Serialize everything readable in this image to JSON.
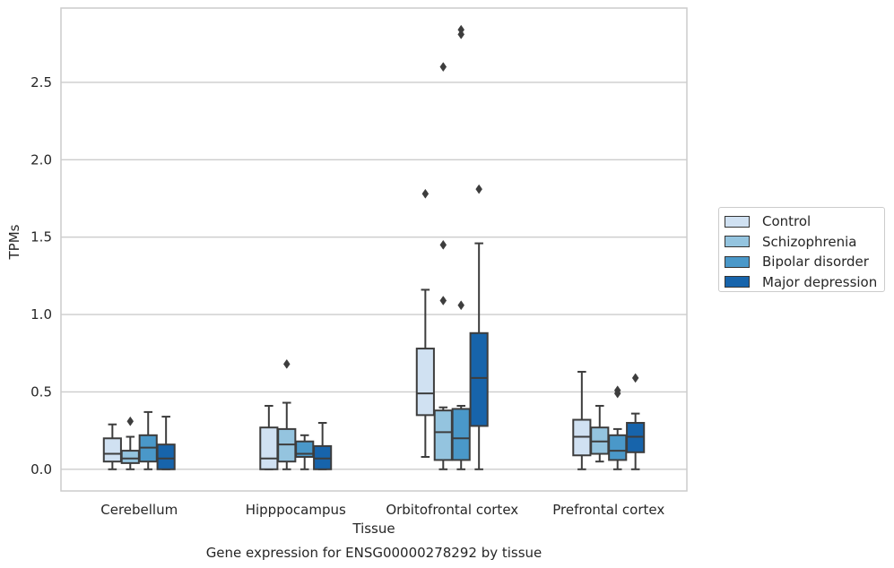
{
  "caption": "Gene expression for ENSG00000278292 by tissue",
  "legend": {
    "placement": "right",
    "items": [
      {
        "label": "Control",
        "color": "#d0e1f2"
      },
      {
        "label": "Schizophrenia",
        "color": "#94c4df"
      },
      {
        "label": "Bipolar disorder",
        "color": "#4a98c9"
      },
      {
        "label": "Major depression",
        "color": "#1764ab"
      }
    ]
  },
  "chart_data": {
    "type": "box",
    "xlabel": "Tissue",
    "ylabel": "TPMs",
    "categories": [
      "Cerebellum",
      "Hipppocampus",
      "Orbitofrontal cortex",
      "Prefrontal cortex"
    ],
    "ylim": [
      -0.14,
      2.98
    ],
    "yticks": [
      0.0,
      0.5,
      1.0,
      1.5,
      2.0,
      2.5
    ],
    "ytick_labels": [
      "0.0",
      "0.5",
      "1.0",
      "1.5",
      "2.0",
      "2.5"
    ],
    "grid": "horizontal",
    "series": [
      {
        "name": "Control",
        "color": "#d0e1f2",
        "boxes": [
          {
            "min": 0.0,
            "q1": 0.05,
            "median": 0.1,
            "q3": 0.2,
            "max": 0.29,
            "outliers": []
          },
          {
            "min": 0.0,
            "q1": 0.0,
            "median": 0.07,
            "q3": 0.27,
            "max": 0.41,
            "outliers": []
          },
          {
            "min": 0.08,
            "q1": 0.35,
            "median": 0.49,
            "q3": 0.78,
            "max": 1.16,
            "outliers": [
              1.78
            ]
          },
          {
            "min": 0.0,
            "q1": 0.09,
            "median": 0.21,
            "q3": 0.32,
            "max": 0.63,
            "outliers": []
          }
        ]
      },
      {
        "name": "Schizophrenia",
        "color": "#94c4df",
        "boxes": [
          {
            "min": 0.0,
            "q1": 0.04,
            "median": 0.07,
            "q3": 0.12,
            "max": 0.21,
            "outliers": [
              0.31
            ]
          },
          {
            "min": 0.0,
            "q1": 0.05,
            "median": 0.16,
            "q3": 0.26,
            "max": 0.43,
            "outliers": [
              0.68
            ]
          },
          {
            "min": 0.0,
            "q1": 0.06,
            "median": 0.24,
            "q3": 0.38,
            "max": 0.4,
            "outliers": [
              1.09,
              1.45,
              2.6
            ]
          },
          {
            "min": 0.05,
            "q1": 0.1,
            "median": 0.18,
            "q3": 0.27,
            "max": 0.41,
            "outliers": []
          }
        ]
      },
      {
        "name": "Bipolar disorder",
        "color": "#4a98c9",
        "boxes": [
          {
            "min": 0.0,
            "q1": 0.05,
            "median": 0.14,
            "q3": 0.22,
            "max": 0.37,
            "outliers": []
          },
          {
            "min": 0.0,
            "q1": 0.08,
            "median": 0.1,
            "q3": 0.18,
            "max": 0.22,
            "outliers": []
          },
          {
            "min": 0.0,
            "q1": 0.06,
            "median": 0.2,
            "q3": 0.39,
            "max": 0.41,
            "outliers": [
              1.06,
              2.81,
              2.84
            ]
          },
          {
            "min": 0.0,
            "q1": 0.06,
            "median": 0.12,
            "q3": 0.22,
            "max": 0.26,
            "outliers": [
              0.49,
              0.51
            ]
          }
        ]
      },
      {
        "name": "Major depression",
        "color": "#1764ab",
        "boxes": [
          {
            "min": 0.0,
            "q1": 0.0,
            "median": 0.07,
            "q3": 0.16,
            "max": 0.34,
            "outliers": []
          },
          {
            "min": 0.0,
            "q1": 0.0,
            "median": 0.07,
            "q3": 0.15,
            "max": 0.3,
            "outliers": []
          },
          {
            "min": 0.0,
            "q1": 0.28,
            "median": 0.59,
            "q3": 0.88,
            "max": 1.46,
            "outliers": [
              1.81
            ]
          },
          {
            "min": 0.0,
            "q1": 0.11,
            "median": 0.21,
            "q3": 0.3,
            "max": 0.36,
            "outliers": [
              0.59
            ]
          }
        ]
      }
    ]
  }
}
